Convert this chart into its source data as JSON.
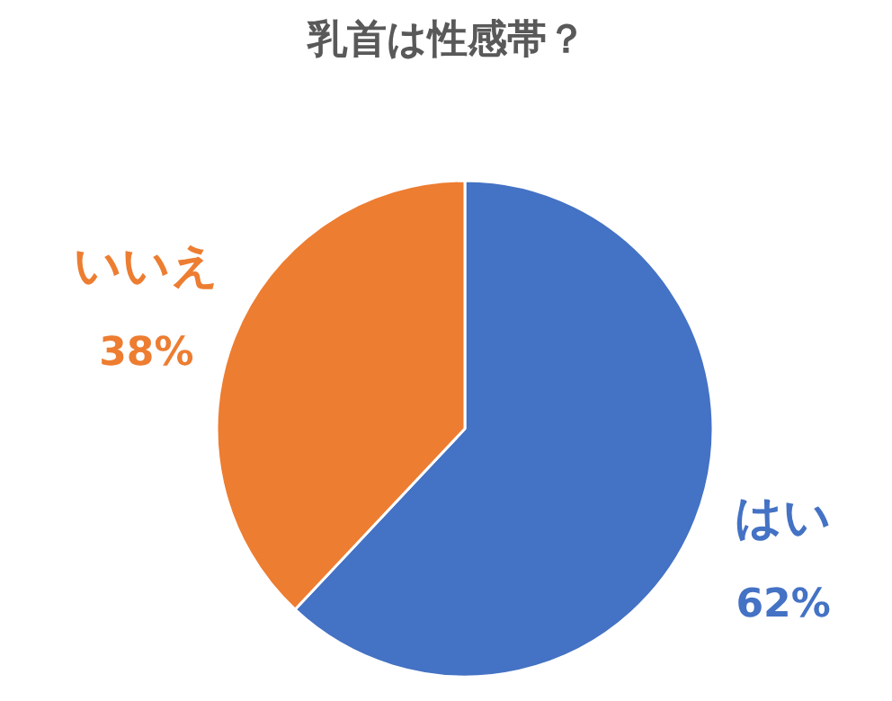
{
  "chart_data": {
    "type": "pie",
    "title": "乳首は性感帯？",
    "categories": [
      "はい",
      "いいえ"
    ],
    "values": [
      62,
      38
    ],
    "colors": [
      "#4472c4",
      "#ed7d31"
    ],
    "value_labels": [
      "62%",
      "38%"
    ]
  }
}
